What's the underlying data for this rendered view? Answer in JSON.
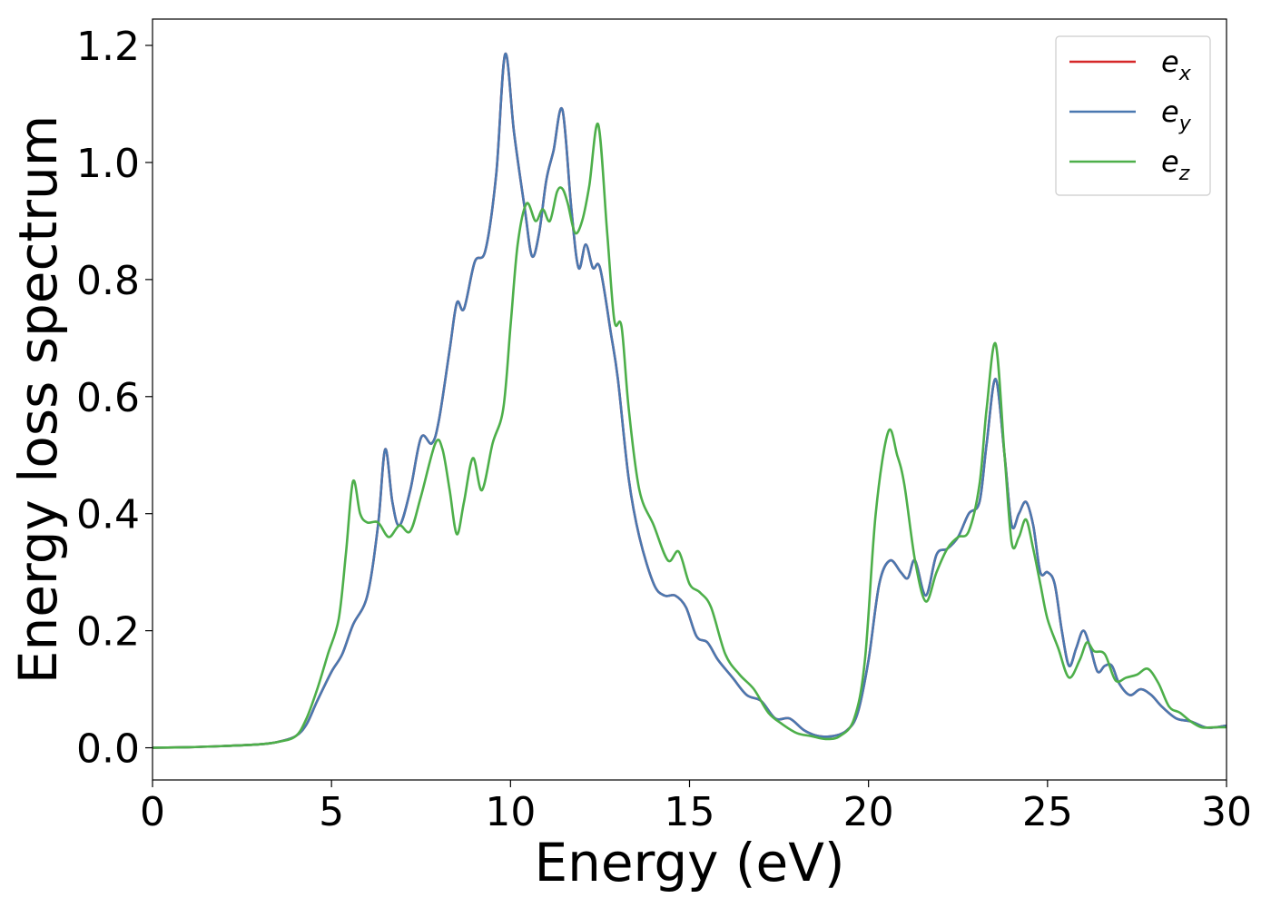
{
  "chart_data": {
    "type": "line",
    "xlabel": "Energy (eV)",
    "ylabel": "Energy loss spectrum",
    "xlim": [
      0,
      30
    ],
    "ylim": [
      -0.055,
      1.245
    ],
    "xticks": [
      0,
      5,
      10,
      15,
      20,
      25,
      30
    ],
    "yticks": [
      0.0,
      0.2,
      0.4,
      0.6,
      0.8,
      1.0,
      1.2
    ],
    "xtick_labels": [
      "0",
      "5",
      "10",
      "15",
      "20",
      "25",
      "30"
    ],
    "ytick_labels": [
      "0.0",
      "0.2",
      "0.4",
      "0.6",
      "0.8",
      "1.0",
      "1.2"
    ],
    "grid": false,
    "legend_position": "top-right",
    "colors": {
      "ex": "#d62728",
      "ey": "#4a78b0",
      "ez": "#4daf4a"
    },
    "series": [
      {
        "key": "ex",
        "name": "e",
        "subscript": "x",
        "color": "#d62728",
        "x": [
          0,
          1,
          2,
          3,
          3.5,
          4.0,
          4.3,
          4.6,
          5.0,
          5.3,
          5.6,
          6.0,
          6.3,
          6.5,
          6.7,
          6.9,
          7.2,
          7.5,
          7.8,
          8.0,
          8.3,
          8.5,
          8.7,
          9.0,
          9.3,
          9.6,
          9.85,
          10.1,
          10.4,
          10.6,
          10.8,
          11.0,
          11.2,
          11.45,
          11.7,
          11.9,
          12.1,
          12.3,
          12.5,
          12.8,
          13.0,
          13.3,
          13.6,
          14.0,
          14.3,
          14.6,
          14.9,
          15.2,
          15.5,
          15.8,
          16.2,
          16.6,
          17.0,
          17.4,
          17.8,
          18.2,
          18.6,
          19.0,
          19.4,
          19.7,
          20.0,
          20.3,
          20.6,
          20.9,
          21.1,
          21.3,
          21.6,
          21.9,
          22.2,
          22.5,
          22.8,
          23.1,
          23.3,
          23.55,
          23.8,
          24.0,
          24.2,
          24.4,
          24.6,
          24.8,
          25.0,
          25.2,
          25.4,
          25.6,
          25.8,
          26.0,
          26.2,
          26.4,
          26.6,
          26.8,
          27.0,
          27.3,
          27.6,
          27.9,
          28.2,
          28.6,
          29.0,
          29.4,
          29.7,
          30.0
        ],
        "y": [
          0.0,
          0.001,
          0.003,
          0.006,
          0.01,
          0.02,
          0.04,
          0.08,
          0.13,
          0.16,
          0.21,
          0.26,
          0.38,
          0.51,
          0.42,
          0.38,
          0.44,
          0.53,
          0.52,
          0.56,
          0.68,
          0.76,
          0.75,
          0.83,
          0.85,
          0.98,
          1.185,
          1.05,
          0.92,
          0.84,
          0.88,
          0.97,
          1.02,
          1.09,
          0.92,
          0.82,
          0.86,
          0.82,
          0.82,
          0.71,
          0.63,
          0.46,
          0.36,
          0.28,
          0.26,
          0.26,
          0.24,
          0.19,
          0.18,
          0.15,
          0.12,
          0.09,
          0.08,
          0.05,
          0.05,
          0.03,
          0.02,
          0.02,
          0.03,
          0.06,
          0.15,
          0.28,
          0.32,
          0.3,
          0.29,
          0.32,
          0.26,
          0.33,
          0.34,
          0.36,
          0.4,
          0.42,
          0.52,
          0.63,
          0.5,
          0.38,
          0.4,
          0.42,
          0.38,
          0.3,
          0.3,
          0.28,
          0.2,
          0.14,
          0.17,
          0.2,
          0.17,
          0.13,
          0.14,
          0.14,
          0.11,
          0.09,
          0.1,
          0.09,
          0.07,
          0.05,
          0.045,
          0.035,
          0.035,
          0.038
        ]
      },
      {
        "key": "ey",
        "name": "e",
        "subscript": "y",
        "color": "#4a78b0",
        "x": [
          0,
          1,
          2,
          3,
          3.5,
          4.0,
          4.3,
          4.6,
          5.0,
          5.3,
          5.6,
          6.0,
          6.3,
          6.5,
          6.7,
          6.9,
          7.2,
          7.5,
          7.8,
          8.0,
          8.3,
          8.5,
          8.7,
          9.0,
          9.3,
          9.6,
          9.85,
          10.1,
          10.4,
          10.6,
          10.8,
          11.0,
          11.2,
          11.45,
          11.7,
          11.9,
          12.1,
          12.3,
          12.5,
          12.8,
          13.0,
          13.3,
          13.6,
          14.0,
          14.3,
          14.6,
          14.9,
          15.2,
          15.5,
          15.8,
          16.2,
          16.6,
          17.0,
          17.4,
          17.8,
          18.2,
          18.6,
          19.0,
          19.4,
          19.7,
          20.0,
          20.3,
          20.6,
          20.9,
          21.1,
          21.3,
          21.6,
          21.9,
          22.2,
          22.5,
          22.8,
          23.1,
          23.3,
          23.55,
          23.8,
          24.0,
          24.2,
          24.4,
          24.6,
          24.8,
          25.0,
          25.2,
          25.4,
          25.6,
          25.8,
          26.0,
          26.2,
          26.4,
          26.6,
          26.8,
          27.0,
          27.3,
          27.6,
          27.9,
          28.2,
          28.6,
          29.0,
          29.4,
          29.7,
          30.0
        ],
        "y": [
          0.0,
          0.001,
          0.003,
          0.006,
          0.01,
          0.02,
          0.04,
          0.08,
          0.13,
          0.16,
          0.21,
          0.26,
          0.38,
          0.51,
          0.42,
          0.38,
          0.44,
          0.53,
          0.52,
          0.56,
          0.68,
          0.76,
          0.75,
          0.83,
          0.85,
          0.98,
          1.185,
          1.05,
          0.92,
          0.84,
          0.88,
          0.97,
          1.02,
          1.09,
          0.92,
          0.82,
          0.86,
          0.82,
          0.82,
          0.71,
          0.63,
          0.46,
          0.36,
          0.28,
          0.26,
          0.26,
          0.24,
          0.19,
          0.18,
          0.15,
          0.12,
          0.09,
          0.08,
          0.05,
          0.05,
          0.03,
          0.02,
          0.02,
          0.03,
          0.06,
          0.15,
          0.28,
          0.32,
          0.3,
          0.29,
          0.32,
          0.26,
          0.33,
          0.34,
          0.36,
          0.4,
          0.42,
          0.52,
          0.63,
          0.5,
          0.38,
          0.4,
          0.42,
          0.38,
          0.3,
          0.3,
          0.28,
          0.2,
          0.14,
          0.17,
          0.2,
          0.17,
          0.13,
          0.14,
          0.14,
          0.11,
          0.09,
          0.1,
          0.09,
          0.07,
          0.05,
          0.045,
          0.035,
          0.035,
          0.038
        ]
      },
      {
        "key": "ez",
        "name": "e",
        "subscript": "z",
        "color": "#4daf4a",
        "x": [
          0,
          1,
          2,
          3,
          3.5,
          4.0,
          4.3,
          4.6,
          4.9,
          5.2,
          5.4,
          5.6,
          5.8,
          6.0,
          6.3,
          6.6,
          6.9,
          7.2,
          7.5,
          7.9,
          8.1,
          8.3,
          8.5,
          8.7,
          8.95,
          9.2,
          9.5,
          9.8,
          10.0,
          10.2,
          10.45,
          10.7,
          10.9,
          11.1,
          11.3,
          11.45,
          11.6,
          11.8,
          12.0,
          12.2,
          12.45,
          12.7,
          12.9,
          13.1,
          13.3,
          13.6,
          14.0,
          14.4,
          14.7,
          15.0,
          15.3,
          15.6,
          16.0,
          16.4,
          16.8,
          17.2,
          17.6,
          18.0,
          18.4,
          18.8,
          19.2,
          19.6,
          19.9,
          20.2,
          20.55,
          20.8,
          21.0,
          21.3,
          21.6,
          21.9,
          22.2,
          22.5,
          22.8,
          23.1,
          23.3,
          23.55,
          23.8,
          24.0,
          24.2,
          24.4,
          24.6,
          24.8,
          25.0,
          25.3,
          25.6,
          25.9,
          26.1,
          26.3,
          26.6,
          26.9,
          27.2,
          27.5,
          27.8,
          28.1,
          28.4,
          28.7,
          29.0,
          29.3,
          29.6,
          30.0
        ],
        "y": [
          0.0,
          0.001,
          0.003,
          0.006,
          0.01,
          0.02,
          0.05,
          0.1,
          0.16,
          0.22,
          0.33,
          0.455,
          0.4,
          0.385,
          0.385,
          0.36,
          0.38,
          0.37,
          0.43,
          0.52,
          0.51,
          0.44,
          0.365,
          0.42,
          0.495,
          0.44,
          0.52,
          0.58,
          0.72,
          0.86,
          0.93,
          0.9,
          0.92,
          0.9,
          0.95,
          0.955,
          0.93,
          0.88,
          0.9,
          0.96,
          1.065,
          0.88,
          0.73,
          0.72,
          0.58,
          0.44,
          0.38,
          0.32,
          0.335,
          0.28,
          0.265,
          0.24,
          0.16,
          0.125,
          0.1,
          0.06,
          0.04,
          0.025,
          0.02,
          0.015,
          0.02,
          0.05,
          0.15,
          0.4,
          0.54,
          0.5,
          0.45,
          0.32,
          0.25,
          0.3,
          0.34,
          0.36,
          0.37,
          0.45,
          0.58,
          0.69,
          0.5,
          0.35,
          0.36,
          0.39,
          0.34,
          0.28,
          0.22,
          0.17,
          0.12,
          0.15,
          0.18,
          0.165,
          0.16,
          0.115,
          0.12,
          0.125,
          0.135,
          0.11,
          0.07,
          0.06,
          0.045,
          0.035,
          0.035,
          0.035
        ]
      }
    ]
  }
}
